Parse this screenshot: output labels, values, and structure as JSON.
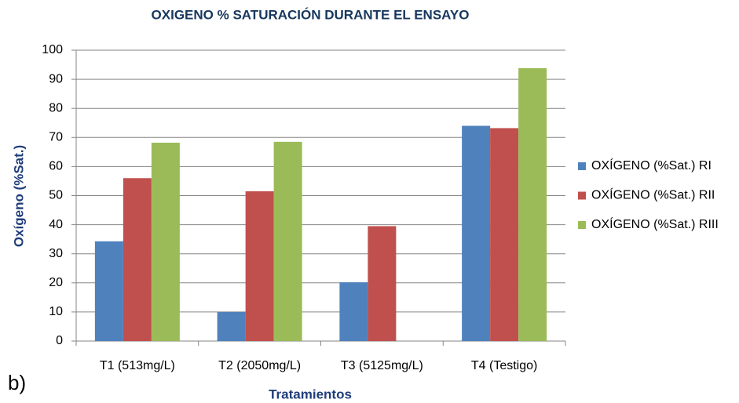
{
  "chart_data": {
    "type": "bar",
    "title": "OXIGENO % SATURACIÓN DURANTE EL ENSAYO",
    "xlabel": "Tratamientos",
    "ylabel": "Oxígeno (%Sat.)",
    "annotation": "b)",
    "categories": [
      "T1 (513mg/L)",
      "T2 (2050mg/L)",
      "T3 (5125mg/L)",
      "T4 (Testigo)"
    ],
    "series": [
      {
        "name": "OXÍGENO (%Sat.) RI",
        "color": "#4f81bd",
        "values": [
          34.3,
          10,
          20.2,
          74
        ]
      },
      {
        "name": "OXÍGENO (%Sat.) RII",
        "color": "#c0504d",
        "values": [
          56,
          51.5,
          39.5,
          73.2
        ]
      },
      {
        "name": "OXÍGENO (%Sat.) RIII",
        "color": "#9bbb59",
        "values": [
          68.2,
          68.5,
          null,
          93.8
        ]
      }
    ],
    "ylim": [
      0,
      100
    ],
    "yticks": [
      0,
      10,
      20,
      30,
      40,
      50,
      60,
      70,
      80,
      90,
      100
    ],
    "grid": true,
    "legend": "right"
  }
}
